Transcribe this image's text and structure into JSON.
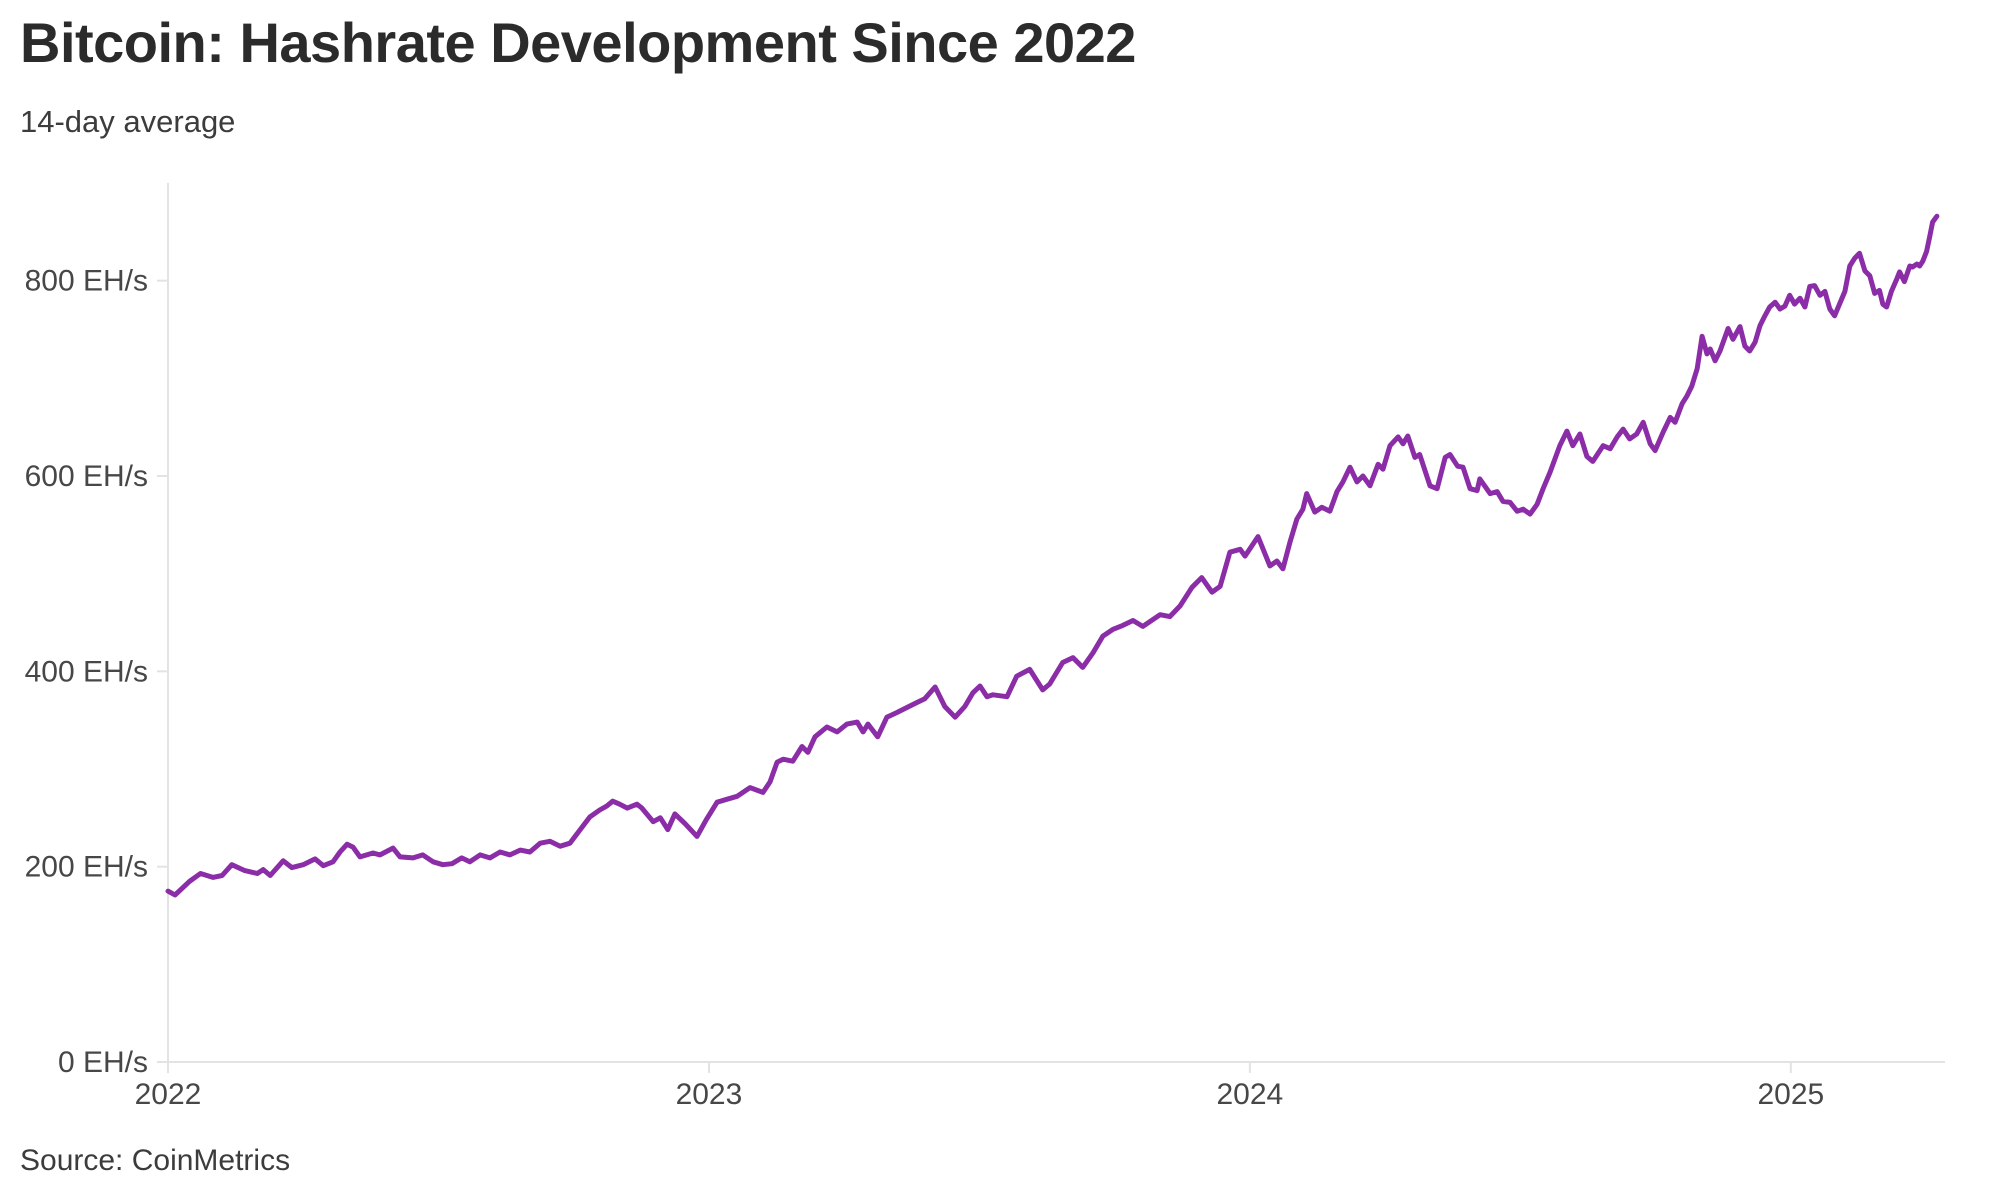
{
  "header": {
    "title": "Bitcoin: Hashrate Development Since 2022",
    "subtitle": "14-day average"
  },
  "footer": {
    "source": "Source: CoinMetrics"
  },
  "chart_data": {
    "type": "line",
    "title": "Bitcoin: Hashrate Development Since 2022",
    "subtitle": "14-day average",
    "series_name": "Bitcoin network hashrate (14-day average)",
    "unit": "EH/s",
    "xlabel": "",
    "ylabel": "EH/s",
    "grid": false,
    "legend": "none",
    "colors": {
      "line": "#8c2da8",
      "axis": "#e3e3e3",
      "tick_label": "#474747",
      "title": "#2b2b2b",
      "text": "#3c3c3c",
      "background": "#ffffff"
    },
    "xlim": [
      2022,
      2025.285
    ],
    "ylim": [
      0,
      900
    ],
    "x_ticks": [
      {
        "value": 2022,
        "label": "2022"
      },
      {
        "value": 2023,
        "label": "2023"
      },
      {
        "value": 2024,
        "label": "2024"
      },
      {
        "value": 2025,
        "label": "2025"
      }
    ],
    "y_ticks": [
      {
        "value": 0,
        "label": "0 EH/s"
      },
      {
        "value": 200,
        "label": "200 EH/s"
      },
      {
        "value": 400,
        "label": "400 EH/s"
      },
      {
        "value": 600,
        "label": "600 EH/s"
      },
      {
        "value": 800,
        "label": "800 EH/s"
      }
    ],
    "points": [
      [
        2022.0,
        175
      ],
      [
        2022.013,
        171
      ],
      [
        2022.04,
        185
      ],
      [
        2022.06,
        193
      ],
      [
        2022.083,
        189
      ],
      [
        2022.1,
        191
      ],
      [
        2022.118,
        202
      ],
      [
        2022.142,
        196
      ],
      [
        2022.165,
        193
      ],
      [
        2022.176,
        197
      ],
      [
        2022.189,
        191
      ],
      [
        2022.213,
        206
      ],
      [
        2022.229,
        199
      ],
      [
        2022.25,
        202
      ],
      [
        2022.272,
        208
      ],
      [
        2022.287,
        201
      ],
      [
        2022.305,
        205
      ],
      [
        2022.318,
        215
      ],
      [
        2022.331,
        223
      ],
      [
        2022.342,
        220
      ],
      [
        2022.355,
        210
      ],
      [
        2022.379,
        214
      ],
      [
        2022.392,
        212
      ],
      [
        2022.416,
        219
      ],
      [
        2022.429,
        210
      ],
      [
        2022.453,
        209
      ],
      [
        2022.471,
        212
      ],
      [
        2022.49,
        205
      ],
      [
        2022.508,
        202
      ],
      [
        2022.525,
        203
      ],
      [
        2022.543,
        209
      ],
      [
        2022.558,
        205
      ],
      [
        2022.577,
        212
      ],
      [
        2022.595,
        209
      ],
      [
        2022.614,
        215
      ],
      [
        2022.632,
        212
      ],
      [
        2022.651,
        217
      ],
      [
        2022.669,
        215
      ],
      [
        2022.688,
        224
      ],
      [
        2022.706,
        226
      ],
      [
        2022.725,
        221
      ],
      [
        2022.743,
        224
      ],
      [
        2022.762,
        238
      ],
      [
        2022.78,
        251
      ],
      [
        2022.798,
        258
      ],
      [
        2022.811,
        262
      ],
      [
        2022.822,
        267
      ],
      [
        2022.835,
        264
      ],
      [
        2022.849,
        260
      ],
      [
        2022.867,
        264
      ],
      [
        2022.876,
        260
      ],
      [
        2022.897,
        246
      ],
      [
        2022.91,
        250
      ],
      [
        2022.924,
        238
      ],
      [
        2022.937,
        254
      ],
      [
        2022.956,
        244
      ],
      [
        2022.978,
        231
      ],
      [
        2022.995,
        248
      ],
      [
        2023.015,
        266
      ],
      [
        2023.033,
        269
      ],
      [
        2023.052,
        272
      ],
      [
        2023.076,
        281
      ],
      [
        2023.1,
        276
      ],
      [
        2023.113,
        287
      ],
      [
        2023.126,
        307
      ],
      [
        2023.137,
        310
      ],
      [
        2023.155,
        308
      ],
      [
        2023.172,
        323
      ],
      [
        2023.183,
        317
      ],
      [
        2023.196,
        333
      ],
      [
        2023.218,
        343
      ],
      [
        2023.237,
        338
      ],
      [
        2023.255,
        346
      ],
      [
        2023.274,
        348
      ],
      [
        2023.285,
        338
      ],
      [
        2023.294,
        346
      ],
      [
        2023.312,
        333
      ],
      [
        2023.329,
        353
      ],
      [
        2023.348,
        358
      ],
      [
        2023.366,
        363
      ],
      [
        2023.384,
        368
      ],
      [
        2023.399,
        372
      ],
      [
        2023.418,
        384
      ],
      [
        2023.436,
        364
      ],
      [
        2023.455,
        353
      ],
      [
        2023.473,
        364
      ],
      [
        2023.488,
        378
      ],
      [
        2023.501,
        385
      ],
      [
        2023.514,
        374
      ],
      [
        2023.525,
        376
      ],
      [
        2023.551,
        374
      ],
      [
        2023.569,
        395
      ],
      [
        2023.593,
        402
      ],
      [
        2023.617,
        381
      ],
      [
        2023.63,
        387
      ],
      [
        2023.654,
        409
      ],
      [
        2023.673,
        414
      ],
      [
        2023.691,
        404
      ],
      [
        2023.71,
        419
      ],
      [
        2023.728,
        436
      ],
      [
        2023.747,
        443
      ],
      [
        2023.765,
        447
      ],
      [
        2023.784,
        452
      ],
      [
        2023.802,
        446
      ],
      [
        2023.834,
        458
      ],
      [
        2023.852,
        456
      ],
      [
        2023.871,
        467
      ],
      [
        2023.893,
        486
      ],
      [
        2023.911,
        496
      ],
      [
        2023.93,
        481
      ],
      [
        2023.945,
        487
      ],
      [
        2023.963,
        522
      ],
      [
        2023.982,
        525
      ],
      [
        2023.991,
        518
      ],
      [
        2024.015,
        538
      ],
      [
        2024.037,
        508
      ],
      [
        2024.05,
        513
      ],
      [
        2024.061,
        505
      ],
      [
        2024.074,
        532
      ],
      [
        2024.087,
        556
      ],
      [
        2024.098,
        566
      ],
      [
        2024.105,
        582
      ],
      [
        2024.12,
        563
      ],
      [
        2024.133,
        568
      ],
      [
        2024.148,
        564
      ],
      [
        2024.161,
        584
      ],
      [
        2024.172,
        594
      ],
      [
        2024.185,
        609
      ],
      [
        2024.198,
        594
      ],
      [
        2024.209,
        600
      ],
      [
        2024.222,
        590
      ],
      [
        2024.237,
        612
      ],
      [
        2024.246,
        607
      ],
      [
        2024.259,
        631
      ],
      [
        2024.274,
        640
      ],
      [
        2024.283,
        633
      ],
      [
        2024.292,
        641
      ],
      [
        2024.305,
        619
      ],
      [
        2024.314,
        622
      ],
      [
        2024.333,
        590
      ],
      [
        2024.346,
        587
      ],
      [
        2024.361,
        619
      ],
      [
        2024.37,
        622
      ],
      [
        2024.384,
        610
      ],
      [
        2024.394,
        609
      ],
      [
        2024.407,
        587
      ],
      [
        2024.42,
        585
      ],
      [
        2024.425,
        597
      ],
      [
        2024.444,
        582
      ],
      [
        2024.457,
        584
      ],
      [
        2024.468,
        574
      ],
      [
        2024.481,
        573
      ],
      [
        2024.494,
        564
      ],
      [
        2024.505,
        566
      ],
      [
        2024.518,
        561
      ],
      [
        2024.531,
        571
      ],
      [
        2024.542,
        587
      ],
      [
        2024.555,
        604
      ],
      [
        2024.573,
        631
      ],
      [
        2024.586,
        646
      ],
      [
        2024.597,
        631
      ],
      [
        2024.61,
        643
      ],
      [
        2024.623,
        620
      ],
      [
        2024.634,
        615
      ],
      [
        2024.653,
        631
      ],
      [
        2024.666,
        628
      ],
      [
        2024.679,
        640
      ],
      [
        2024.69,
        648
      ],
      [
        2024.702,
        638
      ],
      [
        2024.715,
        643
      ],
      [
        2024.727,
        655
      ],
      [
        2024.74,
        633
      ],
      [
        2024.749,
        626
      ],
      [
        2024.764,
        645
      ],
      [
        2024.777,
        660
      ],
      [
        2024.786,
        655
      ],
      [
        2024.799,
        674
      ],
      [
        2024.808,
        682
      ],
      [
        2024.817,
        692
      ],
      [
        2024.827,
        710
      ],
      [
        2024.836,
        743
      ],
      [
        2024.845,
        725
      ],
      [
        2024.851,
        730
      ],
      [
        2024.86,
        718
      ],
      [
        2024.869,
        728
      ],
      [
        2024.884,
        751
      ],
      [
        2024.893,
        740
      ],
      [
        2024.906,
        753
      ],
      [
        2024.915,
        733
      ],
      [
        2024.924,
        728
      ],
      [
        2024.934,
        737
      ],
      [
        2024.943,
        754
      ],
      [
        2024.952,
        764
      ],
      [
        2024.961,
        773
      ],
      [
        2024.971,
        778
      ],
      [
        2024.98,
        771
      ],
      [
        2024.989,
        774
      ],
      [
        2024.998,
        785
      ],
      [
        2025.007,
        776
      ],
      [
        2025.017,
        782
      ],
      [
        2025.026,
        773
      ],
      [
        2025.035,
        794
      ],
      [
        2025.044,
        795
      ],
      [
        2025.054,
        785
      ],
      [
        2025.063,
        789
      ],
      [
        2025.072,
        771
      ],
      [
        2025.081,
        764
      ],
      [
        2025.09,
        776
      ],
      [
        2025.1,
        789
      ],
      [
        2025.109,
        815
      ],
      [
        2025.118,
        823
      ],
      [
        2025.127,
        828
      ],
      [
        2025.137,
        810
      ],
      [
        2025.146,
        805
      ],
      [
        2025.155,
        787
      ],
      [
        2025.164,
        790
      ],
      [
        2025.17,
        776
      ],
      [
        2025.177,
        773
      ],
      [
        2025.186,
        789
      ],
      [
        2025.196,
        802
      ],
      [
        2025.201,
        809
      ],
      [
        2025.21,
        799
      ],
      [
        2025.22,
        815
      ],
      [
        2025.225,
        814
      ],
      [
        2025.233,
        817
      ],
      [
        2025.238,
        815
      ],
      [
        2025.244,
        820
      ],
      [
        2025.251,
        830
      ],
      [
        2025.257,
        846
      ],
      [
        2025.262,
        860
      ],
      [
        2025.27,
        866
      ]
    ]
  }
}
